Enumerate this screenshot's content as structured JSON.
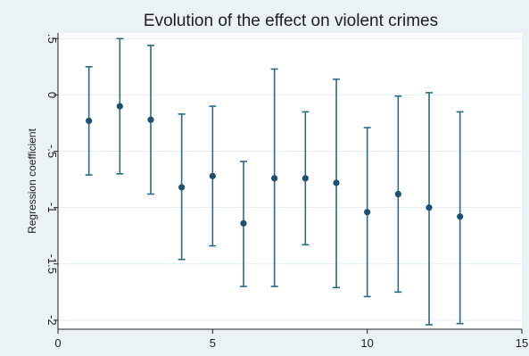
{
  "chart_data": {
    "type": "scatter",
    "title": "Evolution of the effect on violent crimes",
    "xlabel": "",
    "ylabel": "Regression coefficient",
    "xlim": [
      0,
      15
    ],
    "ylim": [
      -2.08,
      0.55
    ],
    "x_ticks": [
      0,
      5,
      10,
      15
    ],
    "x_tick_labels": [
      "0",
      "5",
      "10",
      "15"
    ],
    "y_ticks": [
      0.5,
      0,
      -0.5,
      -1,
      -1.5,
      -2
    ],
    "y_tick_labels": [
      ".5",
      "0",
      "-.5",
      "-1",
      "-1.5",
      "-2"
    ],
    "grid": "horizontal",
    "legend": "none",
    "colors": {
      "marker": "#1d4f6e",
      "error_bar": "#2c6a86",
      "background": "#eaf2f3",
      "plot_area": "#ffffff",
      "grid": "#e4eef0"
    },
    "series": [
      {
        "x": [
          1,
          2,
          3,
          4,
          5,
          6,
          7,
          8,
          9,
          10,
          11,
          12,
          13
        ],
        "y": [
          -0.23,
          -0.1,
          -0.22,
          -0.82,
          -0.72,
          -1.14,
          -0.74,
          -0.74,
          -0.78,
          -1.04,
          -0.88,
          -1.0,
          -1.08
        ],
        "y_lower": [
          -0.71,
          -0.7,
          -0.88,
          -1.46,
          -1.34,
          -1.7,
          -1.7,
          -1.33,
          -1.71,
          -1.79,
          -1.75,
          -2.04,
          -2.03
        ],
        "y_upper": [
          0.25,
          0.5,
          0.44,
          -0.17,
          -0.1,
          -0.59,
          0.23,
          -0.15,
          0.14,
          -0.29,
          -0.01,
          0.02,
          -0.15
        ]
      }
    ]
  }
}
